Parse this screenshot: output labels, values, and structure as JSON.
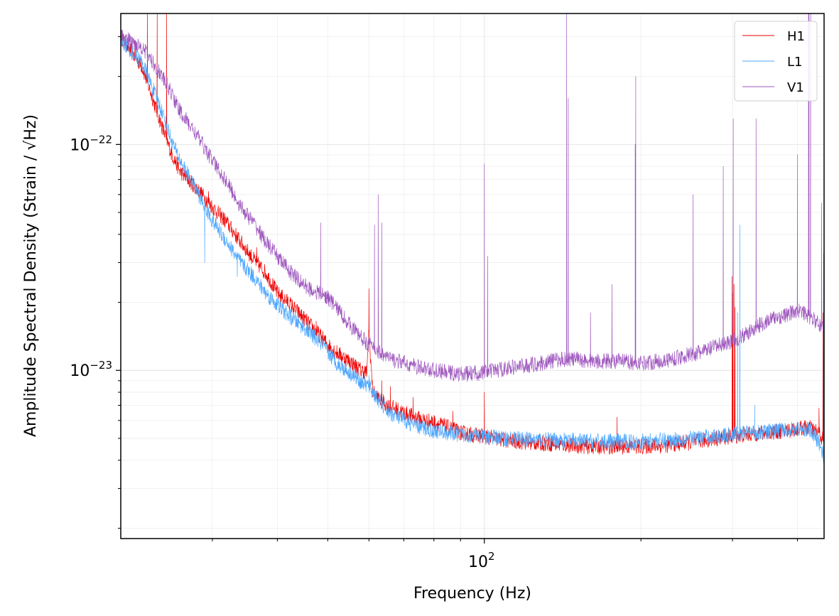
{
  "chart_data": {
    "type": "line",
    "title": "",
    "xlabel": "Frequency (Hz)",
    "ylabel": "Amplitude Spectral Density (Strain / √Hz)",
    "xscale": "log",
    "yscale": "log",
    "xlim": [
      20,
      450
    ],
    "ylim": [
      1.8e-24,
      3.8e-22
    ],
    "grid": true,
    "legend_position": "top-right",
    "x_major_ticks": [
      {
        "value": 100,
        "base": "10",
        "exp": "2"
      }
    ],
    "y_major_ticks": [
      {
        "value": 1e-23,
        "base": "10",
        "exp": "−23"
      },
      {
        "value": 1e-22,
        "base": "10",
        "exp": "−22"
      }
    ],
    "series": [
      {
        "name": "H1",
        "color": "#ee0000",
        "points": [
          [
            20,
            3e-22
          ],
          [
            22,
            2.2e-22
          ],
          [
            24,
            1.2e-22
          ],
          [
            25,
            9.2e-23
          ],
          [
            26,
            7.6e-23
          ],
          [
            28,
            6.4e-23
          ],
          [
            30,
            5.3e-23
          ],
          [
            32,
            4.5e-23
          ],
          [
            34,
            3.7e-23
          ],
          [
            36,
            3.1e-23
          ],
          [
            38,
            2.7e-23
          ],
          [
            40,
            2.2e-23
          ],
          [
            42,
            2e-23
          ],
          [
            45,
            1.7e-23
          ],
          [
            48,
            1.45e-23
          ],
          [
            50,
            1.3e-23
          ],
          [
            52,
            1.2e-23
          ],
          [
            55,
            1.1e-23
          ],
          [
            58,
            1e-23
          ],
          [
            59.5,
            9.8e-24
          ],
          [
            60,
            1.5e-23
          ],
          [
            61,
            8e-24
          ],
          [
            63,
            7.4e-24
          ],
          [
            65,
            7e-24
          ],
          [
            68,
            6.7e-24
          ],
          [
            70,
            6.5e-24
          ],
          [
            75,
            6.1e-24
          ],
          [
            80,
            5.9e-24
          ],
          [
            85,
            5.6e-24
          ],
          [
            90,
            5.3e-24
          ],
          [
            100,
            5.1e-24
          ],
          [
            110,
            4.9e-24
          ],
          [
            120,
            4.8e-24
          ],
          [
            140,
            4.7e-24
          ],
          [
            160,
            4.6e-24
          ],
          [
            180,
            4.6e-24
          ],
          [
            200,
            4.6e-24
          ],
          [
            220,
            4.65e-24
          ],
          [
            250,
            4.8e-24
          ],
          [
            280,
            5e-24
          ],
          [
            300,
            5.1e-24
          ],
          [
            320,
            5.2e-24
          ],
          [
            350,
            5.3e-24
          ],
          [
            380,
            5.4e-24
          ],
          [
            400,
            5.5e-24
          ],
          [
            420,
            5.6e-24
          ],
          [
            440,
            5.3e-24
          ],
          [
            450,
            4.8e-24
          ]
        ],
        "peaks": [
          [
            22.5,
            3.8e-22
          ],
          [
            23.5,
            3.8e-22
          ],
          [
            24.5,
            3.8e-22
          ],
          [
            29.5,
            6.2e-23
          ],
          [
            31.5,
            5e-23
          ],
          [
            36.5,
            3.5e-23
          ],
          [
            38.5,
            2.6e-23
          ],
          [
            47.5,
            1.65e-23
          ],
          [
            60,
            2.3e-23
          ],
          [
            63.5,
            9e-24
          ],
          [
            66,
            8.5e-24
          ],
          [
            73,
            7.6e-24
          ],
          [
            87,
            6.6e-24
          ],
          [
            100,
            8e-24
          ],
          [
            180,
            6.2e-24
          ],
          [
            299.5,
            2.6e-23
          ],
          [
            300.5,
            2.2e-23
          ],
          [
            302,
            2.4e-23
          ],
          [
            303.5,
            1.9e-23
          ],
          [
            310,
            7.5e-24
          ],
          [
            440,
            6.8e-24
          ],
          [
            448,
            1.8e-23
          ]
        ]
      },
      {
        "name": "L1",
        "color": "#4ba6ff",
        "points": [
          [
            20,
            2.9e-22
          ],
          [
            22,
            2.3e-22
          ],
          [
            24,
            1.4e-22
          ],
          [
            25,
            1.05e-22
          ],
          [
            26,
            8.5e-23
          ],
          [
            28,
            6.2e-23
          ],
          [
            30,
            4.6e-23
          ],
          [
            32,
            3.7e-23
          ],
          [
            34,
            3e-23
          ],
          [
            36,
            2.6e-23
          ],
          [
            38,
            2.2e-23
          ],
          [
            40,
            1.95e-23
          ],
          [
            42,
            1.75e-23
          ],
          [
            45,
            1.55e-23
          ],
          [
            48,
            1.35e-23
          ],
          [
            50,
            1.2e-23
          ],
          [
            52,
            1.08e-23
          ],
          [
            55,
            9.8e-24
          ],
          [
            58,
            8.9e-24
          ],
          [
            60,
            8.5e-24
          ],
          [
            62,
            7.6e-24
          ],
          [
            65,
            6.6e-24
          ],
          [
            70,
            6e-24
          ],
          [
            75,
            5.6e-24
          ],
          [
            80,
            5.4e-24
          ],
          [
            90,
            5.2e-24
          ],
          [
            100,
            5.1e-24
          ],
          [
            110,
            5e-24
          ],
          [
            120,
            4.95e-24
          ],
          [
            140,
            4.9e-24
          ],
          [
            160,
            4.85e-24
          ],
          [
            180,
            4.85e-24
          ],
          [
            200,
            4.85e-24
          ],
          [
            220,
            4.9e-24
          ],
          [
            250,
            5e-24
          ],
          [
            280,
            5.1e-24
          ],
          [
            300,
            5.2e-24
          ],
          [
            320,
            5.3e-24
          ],
          [
            350,
            5.35e-24
          ],
          [
            380,
            5.45e-24
          ],
          [
            400,
            5.5e-24
          ],
          [
            420,
            5.5e-24
          ],
          [
            440,
            4.8e-24
          ],
          [
            450,
            4.1e-24
          ]
        ],
        "peaks": [
          [
            29,
            3e-23
          ],
          [
            33.5,
            2.6e-23
          ],
          [
            60,
            9.5e-24
          ],
          [
            307,
            1.8e-23
          ],
          [
            310,
            4.4e-23
          ],
          [
            331,
            7e-24
          ],
          [
            449,
            3.3e-23
          ]
        ]
      },
      {
        "name": "V1",
        "color": "#9d55bd",
        "points": [
          [
            20,
            3e-22
          ],
          [
            22,
            2.7e-22
          ],
          [
            24,
            2e-22
          ],
          [
            25,
            1.7e-22
          ],
          [
            26,
            1.4e-22
          ],
          [
            28,
            1.1e-22
          ],
          [
            30,
            8.5e-23
          ],
          [
            32,
            6.8e-23
          ],
          [
            34,
            5.3e-23
          ],
          [
            36,
            4.5e-23
          ],
          [
            38,
            3.7e-23
          ],
          [
            40,
            3.2e-23
          ],
          [
            42,
            2.8e-23
          ],
          [
            44,
            2.5e-23
          ],
          [
            46,
            2.3e-23
          ],
          [
            48,
            2.2e-23
          ],
          [
            50,
            2.1e-23
          ],
          [
            52,
            1.9e-23
          ],
          [
            55,
            1.6e-23
          ],
          [
            58,
            1.4e-23
          ],
          [
            60,
            1.3e-23
          ],
          [
            63,
            1.2e-23
          ],
          [
            66,
            1.12e-23
          ],
          [
            70,
            1.08e-23
          ],
          [
            75,
            1.03e-23
          ],
          [
            80,
            1e-23
          ],
          [
            85,
            9.8e-24
          ],
          [
            90,
            9.6e-24
          ],
          [
            100,
            9.8e-24
          ],
          [
            110,
            1.02e-23
          ],
          [
            120,
            1.05e-23
          ],
          [
            130,
            1.08e-23
          ],
          [
            140,
            1.12e-23
          ],
          [
            150,
            1.12e-23
          ],
          [
            160,
            1.1e-23
          ],
          [
            170,
            1.1e-23
          ],
          [
            180,
            1.1e-23
          ],
          [
            200,
            1.08e-23
          ],
          [
            220,
            1.1e-23
          ],
          [
            240,
            1.15e-23
          ],
          [
            260,
            1.2e-23
          ],
          [
            280,
            1.28e-23
          ],
          [
            300,
            1.35e-23
          ],
          [
            320,
            1.45e-23
          ],
          [
            340,
            1.6e-23
          ],
          [
            360,
            1.7e-23
          ],
          [
            380,
            1.75e-23
          ],
          [
            400,
            1.85e-23
          ],
          [
            420,
            1.75e-23
          ],
          [
            440,
            1.6e-23
          ],
          [
            450,
            1.55e-23
          ]
        ],
        "peaks": [
          [
            26,
            1.3e-22
          ],
          [
            31.5,
            7e-23
          ],
          [
            36.5,
            4e-23
          ],
          [
            38.5,
            3.5e-23
          ],
          [
            42.5,
            2.5e-23
          ],
          [
            48.5,
            4.5e-23
          ],
          [
            61.5,
            4.4e-23
          ],
          [
            62.5,
            6e-23
          ],
          [
            63.5,
            4.5e-23
          ],
          [
            100,
            8.2e-23
          ],
          [
            101.5,
            3.2e-23
          ],
          [
            144,
            4e-22
          ],
          [
            145,
            1.6e-22
          ],
          [
            160,
            1.8e-23
          ],
          [
            176,
            2.4e-23
          ],
          [
            195,
            1e-22
          ],
          [
            195.5,
            2e-22
          ],
          [
            252,
            6e-23
          ],
          [
            288,
            8e-23
          ],
          [
            301,
            1.3e-22
          ],
          [
            333,
            1.3e-22
          ],
          [
            400,
            9e-23
          ],
          [
            420,
            3.8e-22
          ],
          [
            421,
            3.8e-22
          ],
          [
            424,
            3.8e-22
          ],
          [
            445,
            5.5e-23
          ]
        ]
      }
    ]
  }
}
